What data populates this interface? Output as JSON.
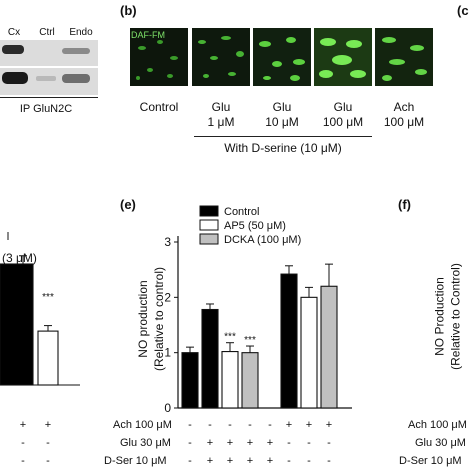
{
  "panel_a": {
    "lane_labels": [
      "Cx",
      "Ctrl",
      "Endo"
    ],
    "ip_label": "IP GluN2C"
  },
  "panel_b": {
    "letter": "(b)",
    "stain_label": "DAF-FM",
    "conditions": [
      {
        "line1": "Control",
        "line2": ""
      },
      {
        "line1": "Glu",
        "line2": "1 μM"
      },
      {
        "line1": "Glu",
        "line2": "10 μM"
      },
      {
        "line1": "Glu",
        "line2": "100 μM"
      },
      {
        "line1": "Ach",
        "line2": "100 μM"
      }
    ],
    "group_label": "With D-serine (10 μM)",
    "clipped_letter": "(c"
  },
  "panel_d": {
    "partial_text": "(3 μM)",
    "signif": "***",
    "row_values": [
      [
        "+",
        "+"
      ],
      [
        "-",
        "-"
      ],
      [
        "-",
        "-"
      ]
    ]
  },
  "panel_e": {
    "letter": "(e)",
    "signif_labels": [
      "***",
      "***",
      "***"
    ],
    "treatment_rows": [
      {
        "label": "Ach 100 μM",
        "values": [
          "-",
          "-",
          "-",
          "-",
          "-",
          "+",
          "+",
          "+"
        ]
      },
      {
        "label": "Glu 30 μM",
        "values": [
          "-",
          "+",
          "+",
          "+",
          "+",
          "-",
          "-",
          "-"
        ]
      },
      {
        "label": "D-Ser 10 μM",
        "values": [
          "-",
          "+",
          "+",
          "+",
          "+",
          "-",
          "-",
          "-"
        ]
      }
    ]
  },
  "panel_f": {
    "letter": "(f)",
    "ylabel_line1": "NO Production",
    "ylabel_line2": "(Relative to Control)",
    "row_labels": [
      "Ach 100 μM",
      "Glu 30 μM",
      "D-Ser 10 μM"
    ]
  },
  "chart_data": {
    "type": "bar",
    "title": "",
    "xlabel": "",
    "ylabel": "NO production (Relative to control)",
    "ylim": [
      0,
      3
    ],
    "yticks": [
      "0",
      "1",
      "2",
      "3"
    ],
    "grid": false,
    "legend_position": "top-left",
    "colors": {
      "Control": "#000000",
      "AP5 (50 μM)": "#ffffff",
      "DCKA (100 μM)": "#c0c0c0"
    },
    "series": [
      {
        "name": "Control",
        "values": [
          1.0,
          1.78,
          2.42
        ]
      },
      {
        "name": "AP5 (50 μM)",
        "values": [
          null,
          1.02,
          2.0
        ]
      },
      {
        "name": "DCKA (100 μM)",
        "values": [
          null,
          1.0,
          2.2
        ]
      }
    ],
    "bars": [
      {
        "series": "Control",
        "group": 0,
        "value": 1.0,
        "error": 0.1,
        "color": "#000000",
        "signif": ""
      },
      {
        "series": "Control",
        "group": 1,
        "value": 1.78,
        "error": 0.1,
        "color": "#000000",
        "signif": ""
      },
      {
        "series": "AP5 (50 μM)",
        "group": 1,
        "value": 1.02,
        "error": 0.16,
        "color": "#ffffff",
        "signif": "***"
      },
      {
        "series": "DCKA (100 μM)",
        "group": 1,
        "value": 1.0,
        "error": 0.12,
        "color": "#c0c0c0",
        "signif": "***"
      },
      {
        "series": "Control",
        "group": 2,
        "value": 2.42,
        "error": 0.15,
        "color": "#000000",
        "signif": ""
      },
      {
        "series": "AP5 (50 μM)",
        "group": 2,
        "value": 2.0,
        "error": 0.18,
        "color": "#ffffff",
        "signif": ""
      },
      {
        "series": "DCKA (100 μM)",
        "group": 2,
        "value": 2.2,
        "error": 0.4,
        "color": "#c0c0c0",
        "signif": ""
      }
    ]
  },
  "panel_d_chart": {
    "type": "bar",
    "colors": {
      "dark": "#000000",
      "light": "#ffffff"
    },
    "values": [
      2.2,
      0.98
    ],
    "errors": [
      0.15,
      0.1
    ]
  }
}
